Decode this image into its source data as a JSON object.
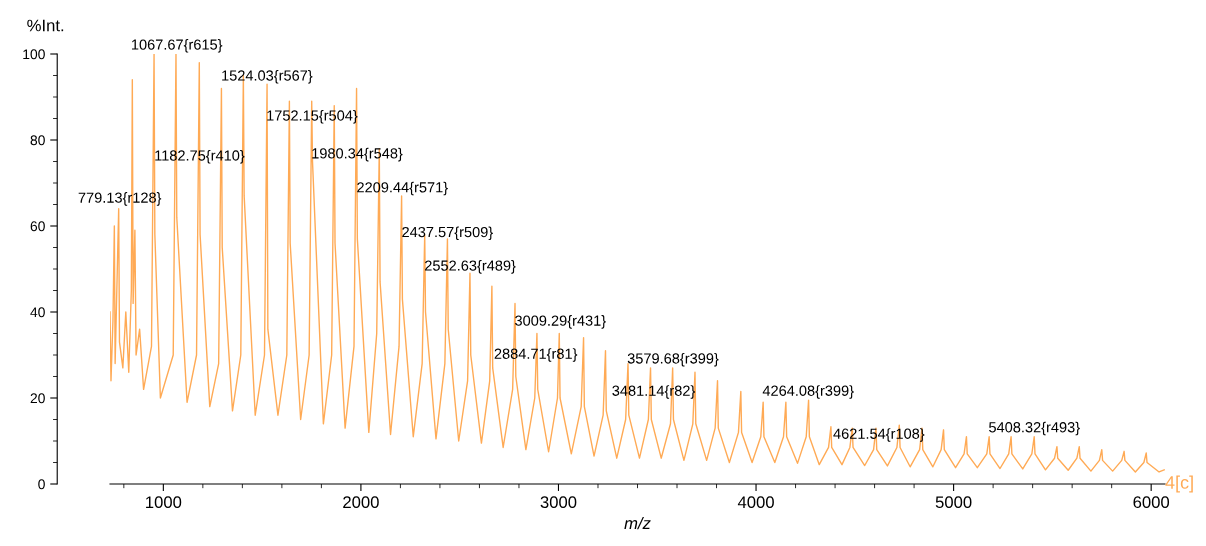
{
  "chart_data": {
    "type": "line",
    "xlabel": "m/z",
    "ylabel": "%Int.",
    "xlim": [
      730,
      6070
    ],
    "ylim": [
      0,
      100
    ],
    "xticks": [
      1000,
      2000,
      3000,
      4000,
      5000,
      6000
    ],
    "yticks": [
      0,
      20,
      40,
      60,
      80,
      100
    ],
    "grid": false,
    "series": [
      {
        "color": "#ffaa55",
        "x": [
          730,
          735,
          745,
          752,
          756,
          764,
          774,
          778,
          795,
          810,
          825,
          838,
          843,
          847,
          856,
          862,
          880,
          900,
          940,
          953,
          957,
          985,
          1050,
          1064,
          1068,
          1120,
          1168,
          1182,
          1186,
          1235,
          1280,
          1294,
          1298,
          1350,
          1392,
          1405,
          1409,
          1465,
          1512,
          1525,
          1529,
          1580,
          1625,
          1638,
          1642,
          1695,
          1738,
          1751,
          1755,
          1810,
          1852,
          1865,
          1869,
          1920,
          1965,
          1978,
          1982,
          2040,
          2080,
          2093,
          2097,
          2150,
          2193,
          2206,
          2210,
          2265,
          2310,
          2323,
          2327,
          2380,
          2425,
          2438,
          2442,
          2495,
          2540,
          2552,
          2556,
          2610,
          2652,
          2663,
          2667,
          2720,
          2768,
          2780,
          2784,
          2835,
          2880,
          2891,
          2895,
          2950,
          2995,
          3004,
          3008,
          3065,
          3115,
          3127,
          3131,
          3180,
          3226,
          3238,
          3242,
          3295,
          3340,
          3352,
          3356,
          3410,
          3455,
          3466,
          3470,
          3520,
          3567,
          3578,
          3582,
          3635,
          3680,
          3691,
          3695,
          3750,
          3793,
          3805,
          3809,
          3865,
          3911,
          3923,
          3927,
          3980,
          4024,
          4036,
          4040,
          4095,
          4139,
          4151,
          4155,
          4210,
          4254,
          4266,
          4270,
          4320,
          4367,
          4379,
          4383,
          4435,
          4475,
          4487,
          4491,
          4550,
          4595,
          4607,
          4611,
          4665,
          4713,
          4725,
          4729,
          4780,
          4828,
          4840,
          4844,
          4895,
          4937,
          4949,
          4953,
          5010,
          5053,
          5065,
          5069,
          5120,
          5168,
          5180,
          5184,
          5235,
          5279,
          5291,
          5295,
          5350,
          5396,
          5408,
          5412,
          5465,
          5511,
          5523,
          5527,
          5580,
          5624,
          5636,
          5640,
          5695,
          5738,
          5750,
          5754,
          5805,
          5851,
          5863,
          5867,
          5920,
          5963,
          5975,
          5979,
          6040,
          6066
        ],
        "values": [
          40,
          24,
          38,
          60,
          28,
          44,
          64,
          33,
          27,
          40,
          26,
          45,
          94,
          42,
          59,
          30,
          36,
          22,
          32,
          100,
          58,
          20,
          30,
          100,
          62,
          19,
          30,
          98,
          58,
          18,
          28,
          92,
          55,
          17,
          30,
          95,
          67,
          16,
          30,
          93,
          36,
          16,
          30,
          89,
          56,
          15,
          30,
          89,
          75,
          14,
          30,
          88,
          56,
          13,
          32,
          92,
          57,
          12,
          35,
          78,
          47,
          11.5,
          32,
          67,
          43,
          11,
          28,
          58,
          40,
          10.5,
          28,
          57,
          36,
          10,
          24,
          49,
          30,
          9.5,
          24,
          46,
          27,
          8.5,
          22,
          42,
          25,
          8,
          20,
          35,
          22,
          7.5,
          20,
          35,
          20,
          7,
          18,
          34,
          18,
          6.5,
          16,
          31,
          17,
          6,
          15,
          28,
          16,
          6,
          15,
          27,
          15,
          6,
          14,
          27,
          15,
          5.5,
          14,
          26,
          14,
          5.5,
          13,
          24,
          13,
          5,
          12,
          21.5,
          12,
          5,
          11,
          19,
          11,
          5,
          11,
          19,
          11,
          4.8,
          11,
          19.5,
          11,
          4.5,
          8.5,
          13.3,
          8.5,
          4.5,
          8.5,
          13,
          8.5,
          4.3,
          8,
          13,
          8,
          4.2,
          8.5,
          13.7,
          8.5,
          4,
          8,
          13,
          8,
          4,
          8,
          12.6,
          8,
          3.8,
          7,
          11,
          7,
          3.8,
          7,
          11,
          7,
          3.6,
          7,
          11,
          7,
          3.5,
          7,
          11,
          7,
          3.3,
          6,
          8.7,
          6,
          3.2,
          6,
          8.7,
          6,
          3,
          5.5,
          8,
          5.5,
          3,
          5.5,
          7.6,
          5.5,
          2.8,
          5,
          7.2,
          5,
          2.8,
          3.3
        ]
      }
    ],
    "annotations": [
      {
        "text": "779.13{r128}",
        "x": 779.13,
        "y": 64.4
      },
      {
        "text": "1067.67{r615}",
        "x": 1067.67,
        "y": 100
      },
      {
        "text": "1182.75{r410}",
        "x": 1182.75,
        "y": 74.2
      },
      {
        "text": "1524.03{r567}",
        "x": 1524.03,
        "y": 92.8
      },
      {
        "text": "1752.15{r504}",
        "x": 1752.15,
        "y": 83.5
      },
      {
        "text": "1980.34{r548}",
        "x": 1980.34,
        "y": 74.7
      },
      {
        "text": "2209.44{r571}",
        "x": 2209.44,
        "y": 66.8
      },
      {
        "text": "2437.57{r509}",
        "x": 2437.57,
        "y": 56.4
      },
      {
        "text": "2552.63{r489}",
        "x": 2552.63,
        "y": 48.6
      },
      {
        "text": "3009.29{r431}",
        "x": 3009.29,
        "y": 35.8
      },
      {
        "text": "2884.71{r81}",
        "x": 2884.71,
        "y": 28.1
      },
      {
        "text": "3579.68{r399}",
        "x": 3579.68,
        "y": 27
      },
      {
        "text": "3481.14{r82}",
        "x": 3481.14,
        "y": 19.5
      },
      {
        "text": "4264.08{r399}",
        "x": 4264.08,
        "y": 19.5
      },
      {
        "text": "4621.54{r108}",
        "x": 4621.54,
        "y": 9.5
      },
      {
        "text": "5408.32{r493}",
        "x": 5408.32,
        "y": 11
      },
      "4[c]"
    ]
  }
}
